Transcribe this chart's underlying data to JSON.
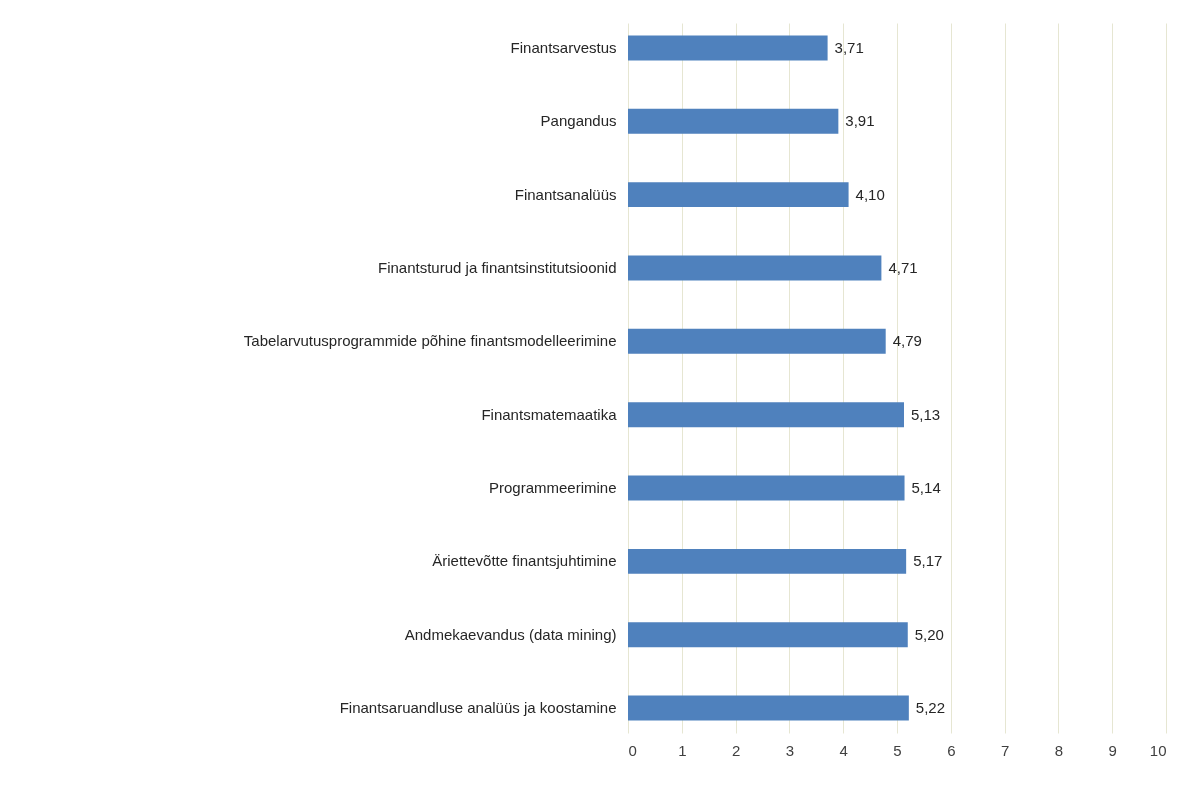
{
  "chart_data": {
    "type": "bar",
    "orientation": "horizontal",
    "categories": [
      "Finantsarvestus",
      "Pangandus",
      "Finantsanalüüs",
      "Finantsturud ja finantsinstitutsioonid",
      "Tabelarvutusprogrammide põhine finantsmodelleerimine",
      "Finantsmatemaatika",
      "Programmeerimine",
      "Äriettevõtte finantsjuhtimine",
      "Andmekaevandus (data mining)",
      "Finantsaruandluse analüüs ja koostamine"
    ],
    "values": [
      3.71,
      3.91,
      4.1,
      4.71,
      4.79,
      5.13,
      5.14,
      5.17,
      5.2,
      5.22
    ],
    "color": "#4f81bd",
    "xlim": [
      0,
      10
    ],
    "xticks": [
      0,
      1,
      2,
      3,
      4,
      5,
      6,
      7,
      8,
      9,
      10
    ],
    "grid": "x",
    "value_labels": [
      "3,71",
      "3,91",
      "4,10",
      "4,71",
      "4,79",
      "5,13",
      "5,14",
      "5,17",
      "5,20",
      "5,22"
    ]
  }
}
